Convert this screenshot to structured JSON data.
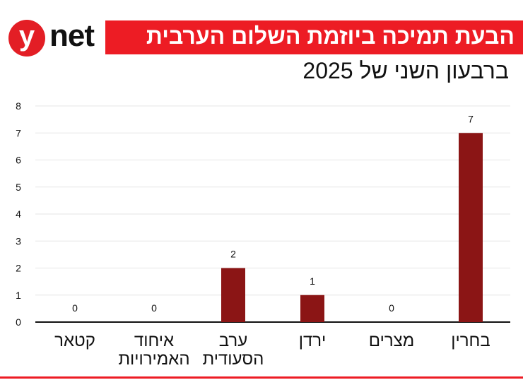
{
  "brand": {
    "logo_letter": "y",
    "logo_text": "net",
    "color": "#ed1c24"
  },
  "header": {
    "title": "הבעת תמיכה ביוזמת השלום הערבית",
    "subtitle": "ברבעון השני של 2025"
  },
  "chart_data": {
    "type": "bar",
    "categories": [
      "קטאר",
      "איחוד\nהאמירויות",
      "ערב\nהסעודית",
      "ירדן",
      "מצרים",
      "בחרין"
    ],
    "values": [
      0,
      0,
      2,
      1,
      0,
      7
    ],
    "data_labels": [
      "0",
      "0",
      "2",
      "1",
      "0",
      "7"
    ],
    "ylim": [
      0,
      8
    ],
    "yticks": [
      0,
      1,
      2,
      3,
      4,
      5,
      6,
      7,
      8
    ],
    "grid": true,
    "bar_color": "#8b1515",
    "xlabel": "",
    "ylabel": ""
  }
}
